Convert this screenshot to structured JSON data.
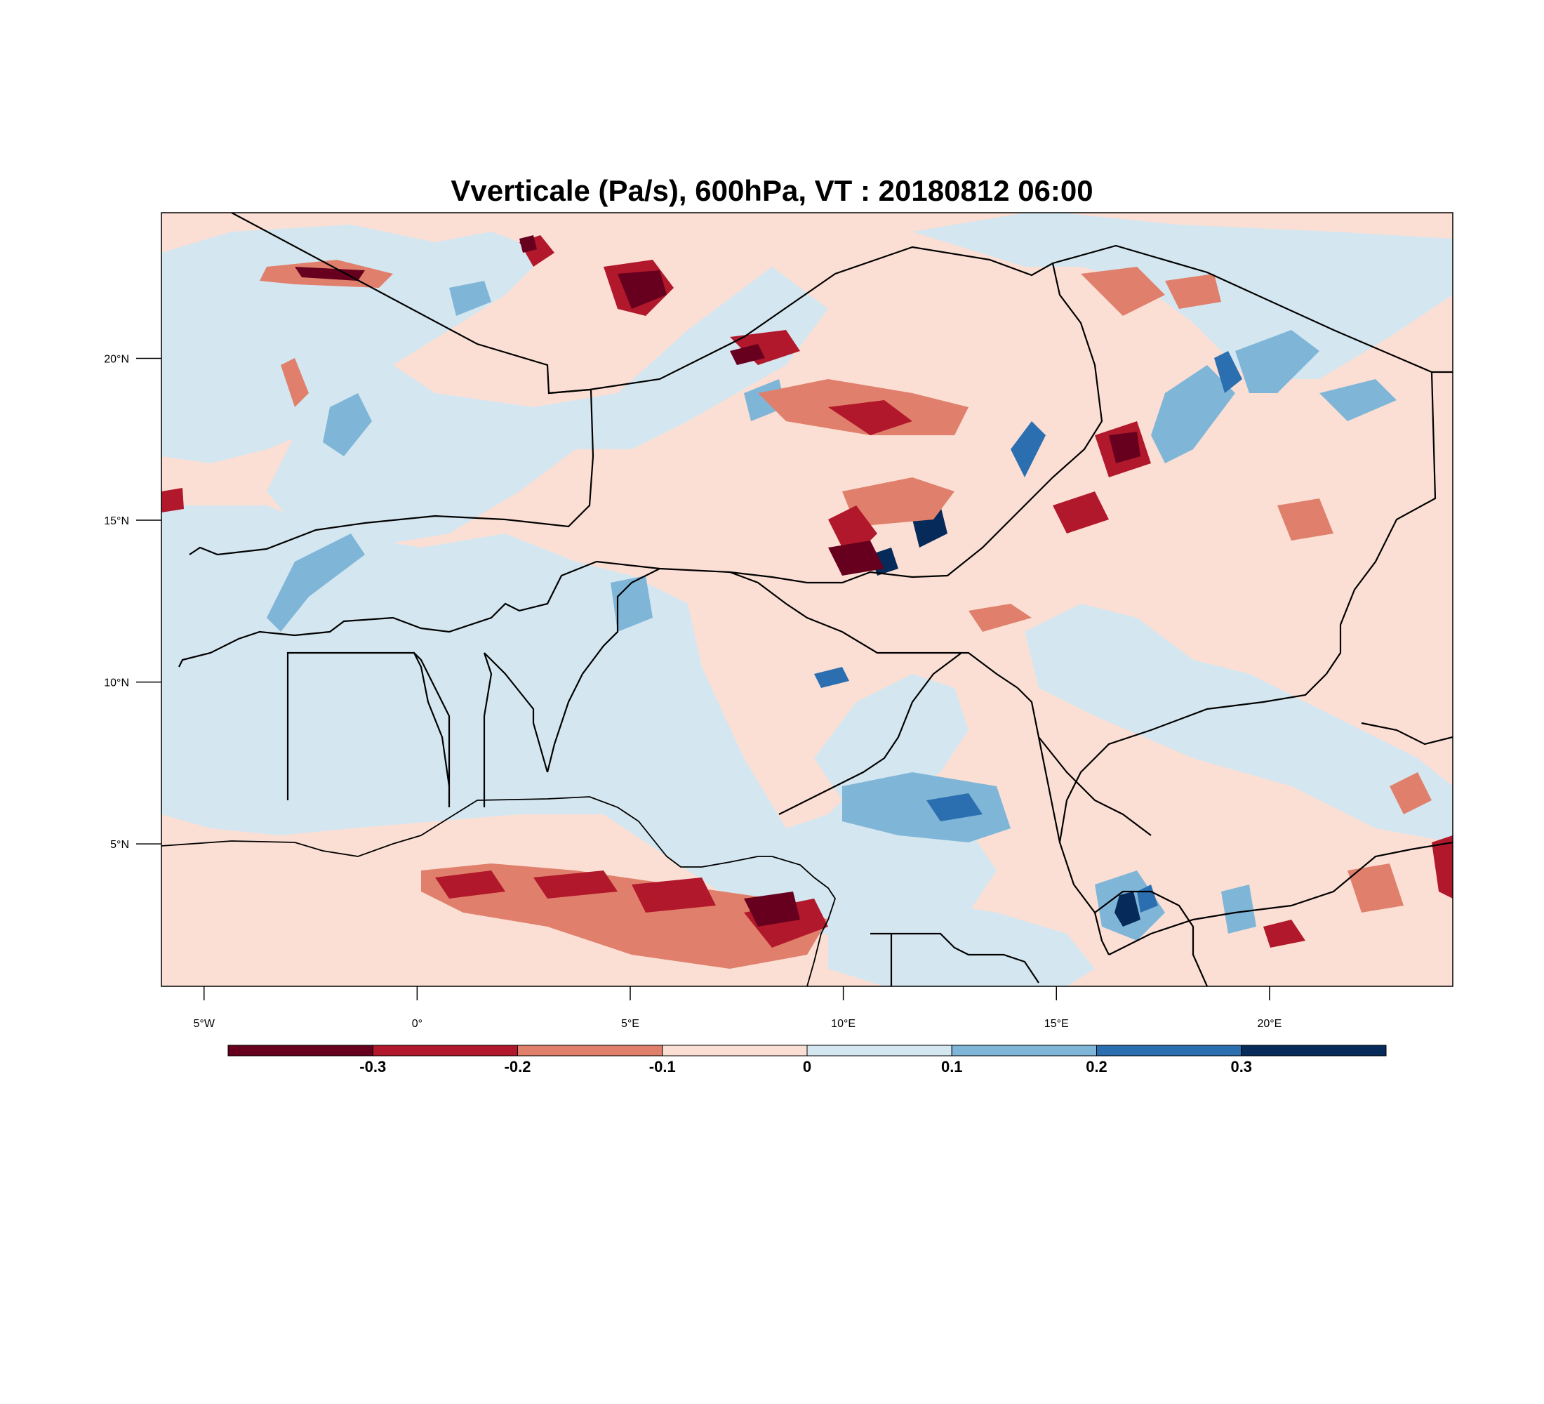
{
  "title": "Vverticale (Pa/s), 600hPa, VT : 20180812  06:00",
  "map": {
    "lon_range": [
      -6,
      24.3
    ],
    "lat_range": [
      0.6,
      24.5
    ],
    "lon_ticks": [
      {
        "value": -5,
        "label": "5°W"
      },
      {
        "value": 0,
        "label": "0°"
      },
      {
        "value": 5,
        "label": "5°E"
      },
      {
        "value": 10,
        "label": "10°E"
      },
      {
        "value": 15,
        "label": "15°E"
      },
      {
        "value": 20,
        "label": "20°E"
      }
    ],
    "lat_ticks": [
      {
        "value": 5,
        "label": "5°N"
      },
      {
        "value": 10,
        "label": "10°N"
      },
      {
        "value": 15,
        "label": "15°N"
      },
      {
        "value": 20,
        "label": "20°N"
      }
    ],
    "background_level_color": "#fbdfd4"
  },
  "colorbar": {
    "colors": [
      "#67001f",
      "#b2182b",
      "#e0806c",
      "#fbdfd4",
      "#d4e6f0",
      "#7fb6d8",
      "#2c6fb0",
      "#062a5a"
    ],
    "ticks": [
      {
        "value": -0.3,
        "label": "-0.3"
      },
      {
        "value": -0.2,
        "label": "-0.2"
      },
      {
        "value": -0.1,
        "label": "-0.1"
      },
      {
        "value": 0,
        "label": "0"
      },
      {
        "value": 0.1,
        "label": "0.1"
      },
      {
        "value": 0.2,
        "label": "0.2"
      },
      {
        "value": 0.3,
        "label": "0.3"
      }
    ]
  }
}
